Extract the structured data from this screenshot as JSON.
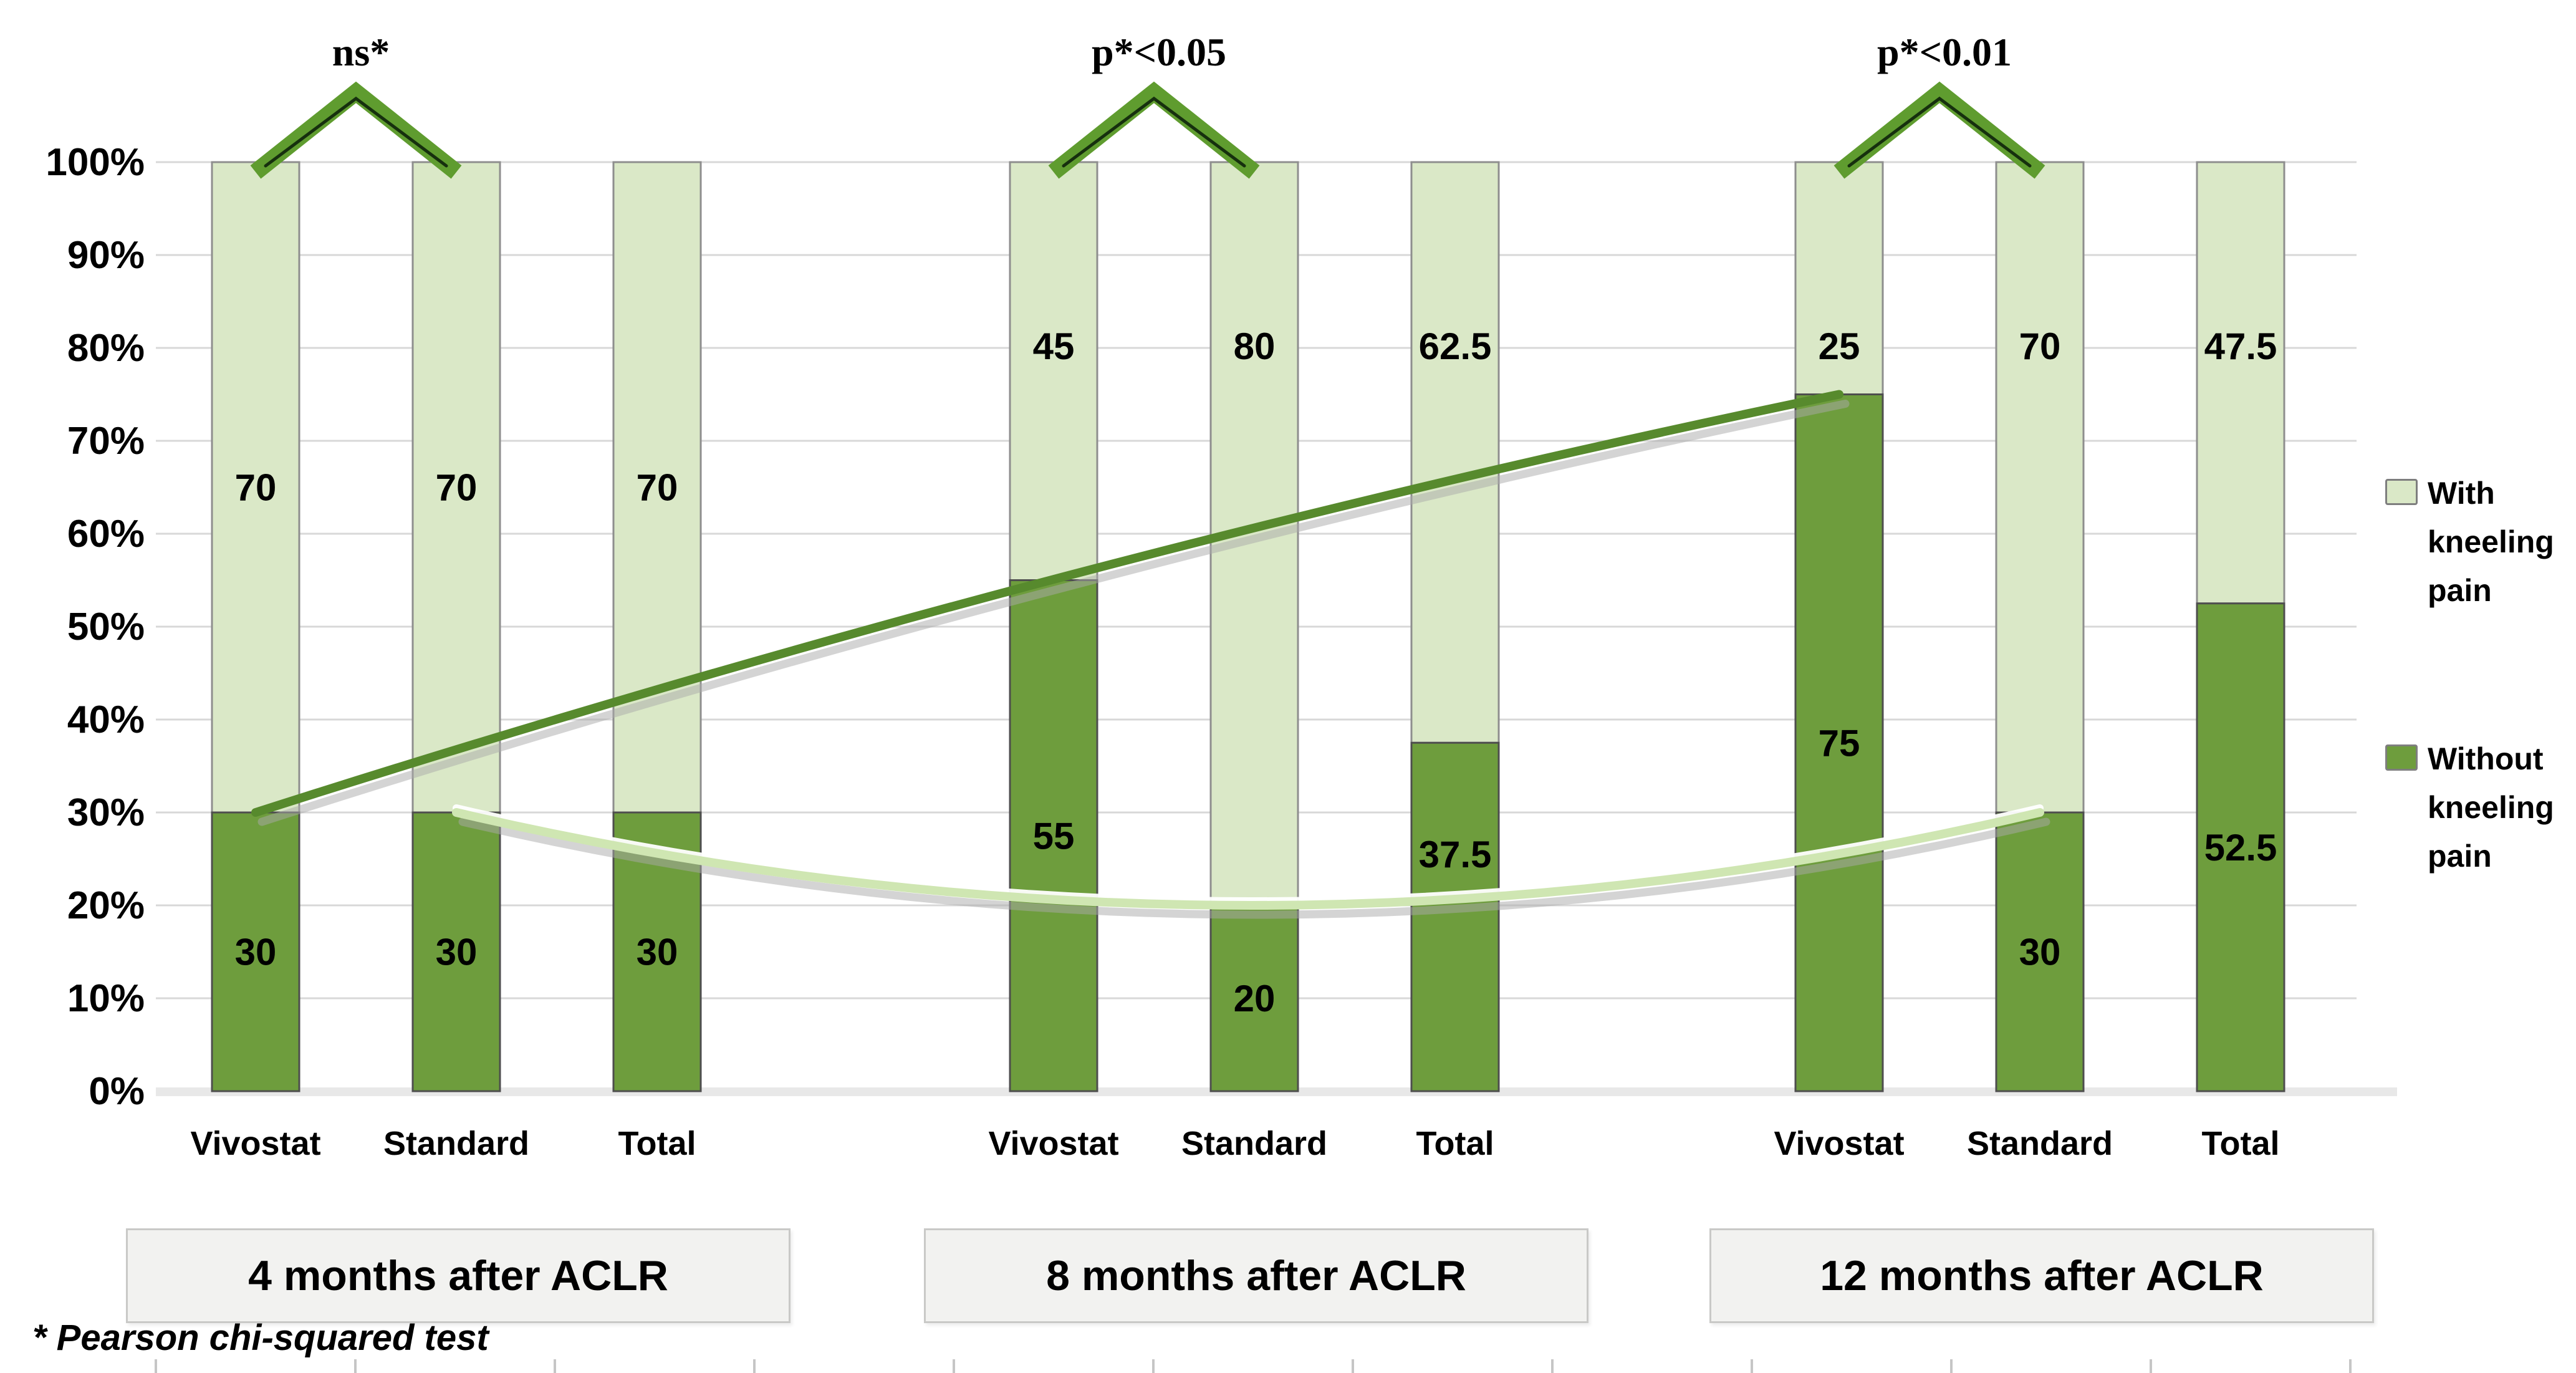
{
  "figure": {
    "footnote": "* Pearson chi-squared test"
  },
  "legend": {
    "position": "right",
    "items": [
      {
        "label": "With kneeling pain",
        "color": "#dae8c7",
        "border": "#7e7e7e"
      },
      {
        "label": "Without kneeling pain",
        "color": "#6e9d3d",
        "border": "#7e7e7e"
      }
    ]
  },
  "chart_data": {
    "type": "bar",
    "stacked": true,
    "units": "percent",
    "ylim": [
      0,
      100
    ],
    "grid": "horizontal",
    "legend_position": "right",
    "y_axis": {
      "tick_labels": [
        "100%",
        "90%",
        "80%",
        "70%",
        "60%",
        "50%",
        "40%",
        "30%",
        "20%",
        "10%",
        "0%"
      ]
    },
    "series": [
      {
        "name": "With kneeling pain",
        "color": "#dae8c7"
      },
      {
        "name": "Without kneeling pain",
        "color": "#6e9d3d"
      }
    ],
    "groups": [
      {
        "label": "4 months after ACLR",
        "significance": "ns*",
        "bars": [
          {
            "category": "Vivostat",
            "without": 30,
            "with": 70
          },
          {
            "category": "Standard",
            "without": 30,
            "with": 70
          },
          {
            "category": "Total",
            "without": 30,
            "with": 70
          }
        ]
      },
      {
        "label": "8 months after ACLR",
        "significance": "p*<0.05",
        "bars": [
          {
            "category": "Vivostat",
            "without": 55,
            "with": 45
          },
          {
            "category": "Standard",
            "without": 20,
            "with": 80
          },
          {
            "category": "Total",
            "without": 37.5,
            "with": 62.5
          }
        ]
      },
      {
        "label": "12 months after ACLR",
        "significance": "p*<0.01",
        "bars": [
          {
            "category": "Vivostat",
            "without": 75,
            "with": 25
          },
          {
            "category": "Standard",
            "without": 30,
            "with": 70
          },
          {
            "category": "Total",
            "without": 52.5,
            "with": 47.5
          }
        ]
      }
    ],
    "trend_lines": [
      {
        "name": "Vivostat - without kneeling pain",
        "category": "Vivostat",
        "values": [
          30,
          55,
          75
        ],
        "color": "#578a2d"
      },
      {
        "name": "Standard - without kneeling pain",
        "category": "Standard",
        "values": [
          30,
          20,
          30
        ],
        "color": "#cfe6b2"
      }
    ],
    "style": {
      "with_fill": "#dae8c7",
      "with_border": "#8e8e8e",
      "without_fill": "#6e9d3d",
      "without_border": "#4e4e4e",
      "bracket": "#5f9c2f",
      "bracket_inner": "#16300e",
      "gridline": "#d8d8d8",
      "axis_band": "#e8e8e8",
      "shadow": "#a9a9a9",
      "trend_highlight": "#ffffff",
      "box_bg": "#f2f2f0",
      "box_border": "#c9c9c7",
      "tick": "#c6c6c6",
      "text": "#000000"
    }
  }
}
